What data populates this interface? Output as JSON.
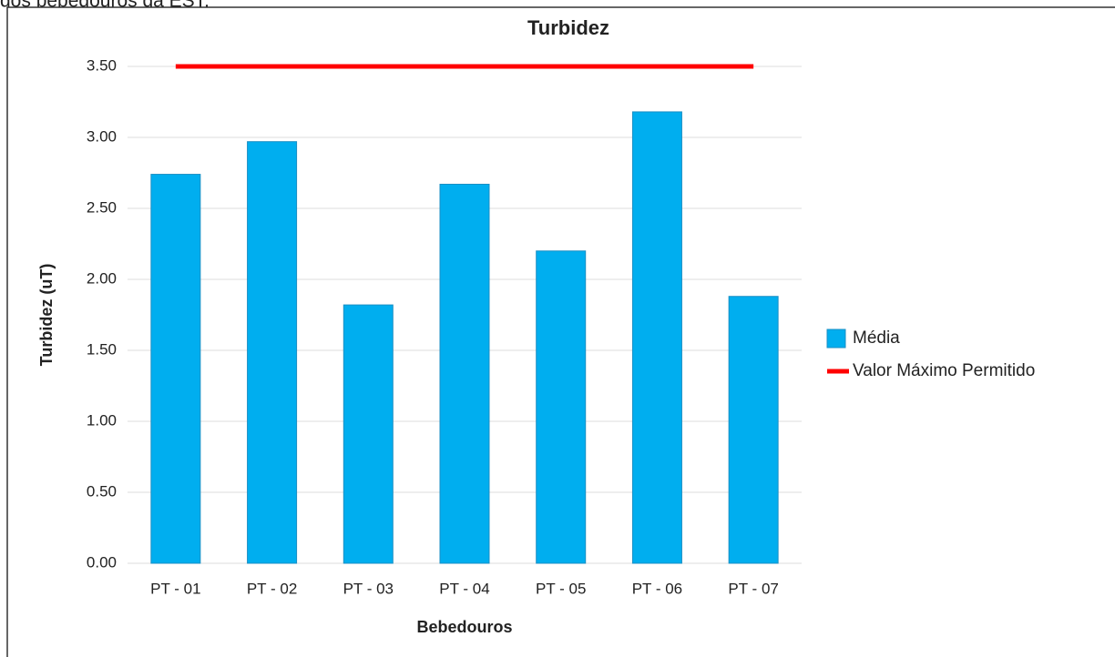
{
  "caption": "dos bebedouros da EST.",
  "chart_data": {
    "type": "bar",
    "title": "Turbidez",
    "x_label": "Bebedouros",
    "y_label": "Turbidez (uT)",
    "categories": [
      "PT - 01",
      "PT - 02",
      "PT - 03",
      "PT - 04",
      "PT - 05",
      "PT - 06",
      "PT - 07"
    ],
    "series": [
      {
        "name": "Média",
        "type": "bar",
        "color": "#00aeef",
        "values": [
          2.74,
          2.97,
          1.82,
          2.67,
          2.2,
          3.18,
          1.88
        ]
      },
      {
        "name": "Valor Máximo Permitido",
        "type": "line",
        "color": "#ff0000",
        "values": [
          3.5,
          3.5,
          3.5,
          3.5,
          3.5,
          3.5,
          3.5
        ]
      }
    ],
    "ylim": [
      0,
      3.5
    ],
    "yticks": [
      {
        "value": 0,
        "label": "0.00"
      },
      {
        "value": 0.5,
        "label": "0.50"
      },
      {
        "value": 1,
        "label": "1.00"
      },
      {
        "value": 1.5,
        "label": "1.50"
      },
      {
        "value": 2,
        "label": "2.00"
      },
      {
        "value": 2.5,
        "label": "2.50"
      },
      {
        "value": 3,
        "label": "3.00"
      },
      {
        "value": 3.5,
        "label": "3.50"
      }
    ],
    "grid": true,
    "legend": "right"
  }
}
